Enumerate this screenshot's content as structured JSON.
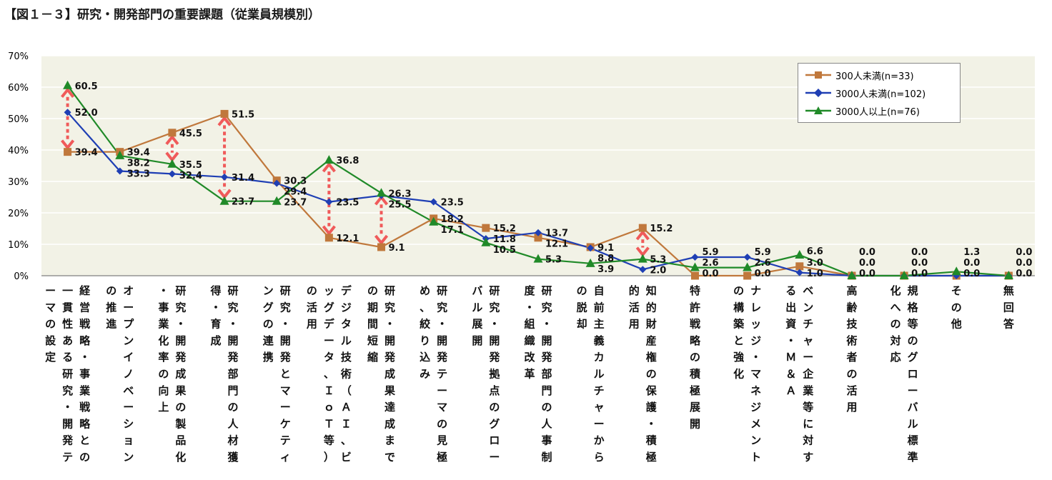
{
  "title": "【図１－３】研究・開発部門の重要課題（従業員規模別）",
  "colors": {
    "plot_bg": "#f2f2e6",
    "grid": "#ffffff",
    "annotation": "#f05a5a"
  },
  "chart_data": {
    "type": "line",
    "ylim": [
      0,
      70
    ],
    "yticks": [
      "0%",
      "10%",
      "20%",
      "30%",
      "40%",
      "50%",
      "60%",
      "70%"
    ],
    "grid": true,
    "legend_position": "top-right",
    "categories": [
      "経営戦略・事業戦略との一貫性ある研究・開発テーマの設定",
      "オープンイノベーションの推進",
      "研究・開発成果の製品化・事業化率の向上",
      "研究・開発部門の人材獲得・育成",
      "研究・開発とマーケティングの連携",
      "デジタル技術（ＡＩ、ビッグデータ、ＩｏＴ等）の活用",
      "研究・開発成果達成までの期間短縮",
      "研究・開発テーマの見極め、絞り込み",
      "研究・開発拠点のグローバル展開",
      "研究・開発部門の人事制度・組織改革",
      "自前主義カルチャーからの脱却",
      "知的財産権の保護・積極的活用",
      "特許戦略の積極展開",
      "ナレッジ・マネジメントの構築と強化",
      "ベンチャー企業等に対する出資・Ｍ＆Ａ",
      "高齢技術者の活用",
      "規格等のグローバル標準化への対応",
      "その他",
      "無回答"
    ],
    "series": [
      {
        "name": "300人未満(n=33)",
        "color": "#c0783c",
        "marker": "square",
        "values": [
          39.4,
          39.4,
          45.5,
          51.5,
          30.3,
          12.1,
          9.1,
          18.2,
          15.2,
          12.1,
          9.1,
          15.2,
          0.0,
          0.0,
          3.0,
          0.0,
          0.0,
          0.0,
          0.0
        ],
        "labels": [
          "39.4",
          "39.4",
          "45.5",
          "51.5",
          "30.3",
          "12.1",
          "9.1",
          "18.2",
          "15.2",
          "12.1",
          "9.1",
          "15.2",
          "0.0",
          "0.0",
          "3.0",
          "0.0",
          "0.0",
          "0.0",
          "0.0"
        ]
      },
      {
        "name": "3000人未満(n=102)",
        "color": "#1f3fb4",
        "marker": "diamond",
        "values": [
          52.0,
          33.3,
          32.4,
          31.4,
          29.4,
          23.5,
          25.5,
          23.5,
          11.8,
          13.7,
          8.8,
          2.0,
          5.9,
          5.9,
          1.0,
          0.0,
          0.0,
          0.0,
          0.0
        ],
        "labels": [
          "52.0",
          "33.3",
          "32.4",
          "31.4",
          "29.4",
          "23.5",
          "25.5",
          "23.5",
          "11.8",
          "13.7",
          "8.8",
          "2.0",
          "5.9",
          "5.9",
          "1.0",
          "0.0",
          "0.0",
          "0.0",
          "0.0"
        ]
      },
      {
        "name": "3000人以上(n=76)",
        "color": "#208a28",
        "marker": "triangle",
        "values": [
          60.5,
          38.2,
          35.5,
          23.7,
          23.7,
          36.8,
          26.3,
          17.1,
          10.5,
          5.3,
          3.9,
          5.3,
          2.6,
          2.6,
          6.6,
          0.0,
          0.0,
          1.3,
          0.0
        ],
        "labels": [
          "60.5",
          "38.2",
          "35.5",
          "23.7",
          "23.7",
          "36.8",
          "26.3",
          "17.1",
          "10.5",
          "5.3",
          "3.9",
          "5.3",
          "2.6",
          "2.6",
          "6.6",
          "0.0",
          "0.0",
          "1.3",
          "0.0"
        ]
      }
    ],
    "annotations": [
      {
        "category": 0,
        "from": 60.5,
        "to": 39.4
      },
      {
        "category": 2,
        "from": 45.5,
        "to": 35.5
      },
      {
        "category": 3,
        "from": 51.5,
        "to": 23.7
      },
      {
        "category": 5,
        "from": 36.8,
        "to": 12.1
      },
      {
        "category": 6,
        "from": 26.3,
        "to": 9.1
      },
      {
        "category": 11,
        "from": 15.2,
        "to": 5.3
      }
    ]
  }
}
